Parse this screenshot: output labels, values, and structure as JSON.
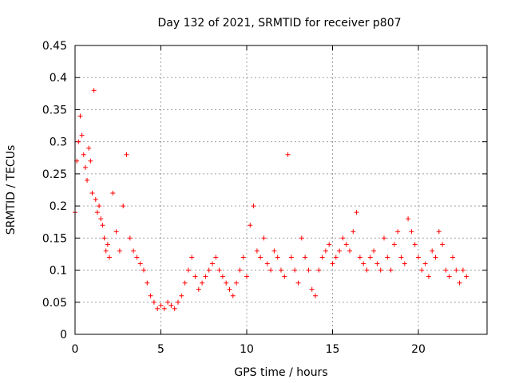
{
  "chart_data": {
    "type": "scatter",
    "title": "Day 132 of 2021, SRMTID for receiver p807",
    "xlabel": "GPS time / hours",
    "ylabel": "SRMTID / TECUs",
    "xlim": [
      0,
      24
    ],
    "ylim": [
      0,
      0.45
    ],
    "xticks": [
      0,
      5,
      10,
      15,
      20
    ],
    "xtick_labels": [
      "0",
      "5",
      "10",
      "15",
      "20"
    ],
    "yticks": [
      0,
      0.05,
      0.1,
      0.15,
      0.2,
      0.25,
      0.3,
      0.35,
      0.4,
      0.45
    ],
    "ytick_labels": [
      "0",
      "0.05",
      "0.1",
      "0.15",
      "0.2",
      "0.25",
      "0.3",
      "0.35",
      "0.4",
      "0.45"
    ],
    "grid": true,
    "marker": "+",
    "marker_color": "#ff0000",
    "series": [
      {
        "name": "SRMTID",
        "x": [
          0.0,
          0.1,
          0.2,
          0.3,
          0.4,
          0.5,
          0.6,
          0.7,
          0.8,
          0.9,
          1.0,
          1.1,
          1.2,
          1.3,
          1.4,
          1.5,
          1.6,
          1.7,
          1.8,
          1.9,
          2.0,
          2.2,
          2.4,
          2.6,
          2.8,
          3.0,
          3.2,
          3.4,
          3.6,
          3.8,
          4.0,
          4.2,
          4.4,
          4.6,
          4.8,
          5.0,
          5.2,
          5.4,
          5.6,
          5.8,
          6.0,
          6.2,
          6.4,
          6.6,
          6.8,
          7.0,
          7.2,
          7.4,
          7.6,
          7.8,
          8.0,
          8.2,
          8.4,
          8.6,
          8.8,
          9.0,
          9.2,
          9.4,
          9.6,
          9.8,
          10.0,
          10.2,
          10.4,
          10.6,
          10.8,
          11.0,
          11.2,
          11.4,
          11.6,
          11.8,
          12.0,
          12.2,
          12.4,
          12.6,
          12.8,
          13.0,
          13.2,
          13.4,
          13.6,
          13.8,
          14.0,
          14.2,
          14.4,
          14.6,
          14.8,
          15.0,
          15.2,
          15.4,
          15.6,
          15.8,
          16.0,
          16.2,
          16.4,
          16.6,
          16.8,
          17.0,
          17.2,
          17.4,
          17.6,
          17.8,
          18.0,
          18.2,
          18.4,
          18.6,
          18.8,
          19.0,
          19.2,
          19.4,
          19.6,
          19.8,
          20.0,
          20.2,
          20.4,
          20.6,
          20.8,
          21.0,
          21.2,
          21.4,
          21.6,
          21.8,
          22.0,
          22.2,
          22.4,
          22.6,
          22.8
        ],
        "y": [
          0.19,
          0.27,
          0.3,
          0.34,
          0.31,
          0.28,
          0.26,
          0.24,
          0.29,
          0.27,
          0.22,
          0.38,
          0.21,
          0.19,
          0.2,
          0.18,
          0.17,
          0.15,
          0.13,
          0.14,
          0.12,
          0.22,
          0.16,
          0.13,
          0.2,
          0.28,
          0.15,
          0.13,
          0.12,
          0.11,
          0.1,
          0.08,
          0.06,
          0.05,
          0.04,
          0.045,
          0.04,
          0.05,
          0.045,
          0.04,
          0.05,
          0.06,
          0.08,
          0.1,
          0.12,
          0.09,
          0.07,
          0.08,
          0.09,
          0.1,
          0.11,
          0.12,
          0.1,
          0.09,
          0.08,
          0.07,
          0.06,
          0.08,
          0.1,
          0.12,
          0.09,
          0.17,
          0.2,
          0.13,
          0.12,
          0.15,
          0.11,
          0.1,
          0.13,
          0.12,
          0.1,
          0.09,
          0.28,
          0.12,
          0.1,
          0.08,
          0.15,
          0.12,
          0.1,
          0.07,
          0.06,
          0.1,
          0.12,
          0.13,
          0.14,
          0.11,
          0.12,
          0.13,
          0.15,
          0.14,
          0.13,
          0.16,
          0.19,
          0.12,
          0.11,
          0.1,
          0.12,
          0.13,
          0.11,
          0.1,
          0.15,
          0.12,
          0.1,
          0.14,
          0.16,
          0.12,
          0.11,
          0.18,
          0.16,
          0.14,
          0.12,
          0.1,
          0.11,
          0.09,
          0.13,
          0.12,
          0.16,
          0.14,
          0.1,
          0.09,
          0.12,
          0.1,
          0.08,
          0.1,
          0.09
        ]
      }
    ]
  }
}
